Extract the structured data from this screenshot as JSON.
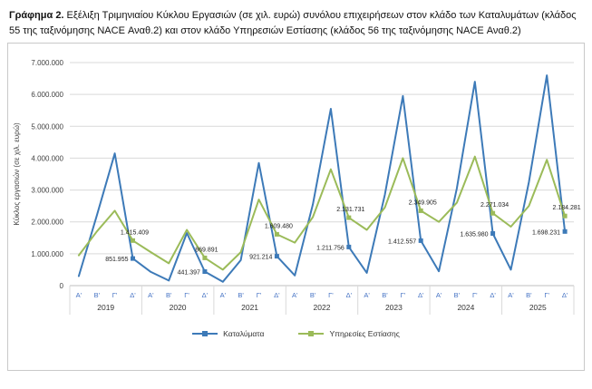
{
  "title": {
    "prefix": "Γράφημα 2.",
    "rest": " Εξέλιξη Τριμηνιαίου Κύκλου Εργασιών (σε χιλ. ευρώ) συνόλου επιχειρήσεων στον κλάδο των Καταλυμάτων (κλάδος 55 της ταξινόμησης NACE Αναθ.2) και στον κλάδο Υπηρεσιών Εστίασης (κλάδος 56 της ταξινόμησης NACE Αναθ.2)"
  },
  "chart_data": {
    "type": "line",
    "ylabel": "Κύκλος εργασιών (σε χιλ. ευρώ)",
    "xlabel": "",
    "ylim": [
      0,
      7000000
    ],
    "ytick_step": 1000000,
    "ytick_labels": [
      "0",
      "1.000.000",
      "2.000.000",
      "3.000.000",
      "4.000.000",
      "5.000.000",
      "6.000.000",
      "7.000.000"
    ],
    "grid": true,
    "legend_position": "bottom",
    "years": [
      "2019",
      "2020",
      "2021",
      "2022",
      "2023",
      "2024",
      "2025"
    ],
    "quarters": [
      "Α'",
      "Β'",
      "Γ'",
      "Δ'"
    ],
    "series": [
      {
        "name": "Καταλύματα",
        "color": "#3D7AB8",
        "values": [
          300000,
          2200000,
          4150000,
          851955,
          430000,
          160000,
          1650000,
          441397,
          120000,
          800000,
          3850000,
          921214,
          320000,
          2550000,
          5550000,
          1211756,
          400000,
          2850000,
          5950000,
          1412557,
          450000,
          3050000,
          6400000,
          1635980,
          500000,
          3250000,
          6600000,
          1698231
        ],
        "data_labels": [
          {
            "index": 3,
            "text": "851.955"
          },
          {
            "index": 7,
            "text": "441.397"
          },
          {
            "index": 11,
            "text": "921.214"
          },
          {
            "index": 15,
            "text": "1.211.756"
          },
          {
            "index": 19,
            "text": "1.412.557"
          },
          {
            "index": 23,
            "text": "1.635.980"
          },
          {
            "index": 27,
            "text": "1.698.231"
          }
        ]
      },
      {
        "name": "Υπηρεσίες Εστίασης",
        "color": "#9BBB59",
        "values": [
          950000,
          1700000,
          2350000,
          1415409,
          1050000,
          700000,
          1750000,
          869891,
          500000,
          1050000,
          2700000,
          1609480,
          1350000,
          2150000,
          3650000,
          2131731,
          1750000,
          2450000,
          4000000,
          2349905,
          2000000,
          2600000,
          4050000,
          2271034,
          1850000,
          2500000,
          3950000,
          2184281
        ],
        "data_labels": [
          {
            "index": 3,
            "text": "1.415.409"
          },
          {
            "index": 7,
            "text": "869.891"
          },
          {
            "index": 11,
            "text": "1.609.480"
          },
          {
            "index": 15,
            "text": "2.131.731"
          },
          {
            "index": 19,
            "text": "2.349.905"
          },
          {
            "index": 23,
            "text": "2.271.034"
          },
          {
            "index": 27,
            "text": "2.184.281"
          }
        ]
      }
    ]
  }
}
